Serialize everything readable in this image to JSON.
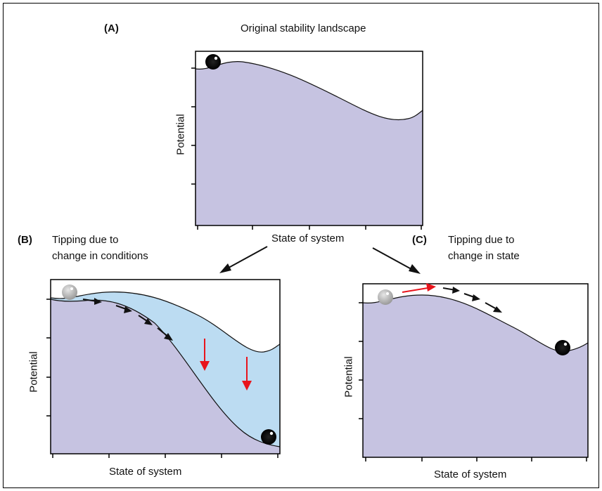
{
  "panel_a": {
    "tag": "(A)",
    "title": "Original stability landscape",
    "ylabel": "Potential",
    "xlabel": "State of system"
  },
  "panel_b": {
    "tag": "(B)",
    "title_line1": "Tipping due to",
    "title_line2": "change in conditions",
    "ylabel": "Potential",
    "xlabel": "State of system"
  },
  "panel_c": {
    "tag": "(C)",
    "title_line1": "Tipping due to",
    "title_line2": "change in state",
    "ylabel": "Potential",
    "xlabel": "State of system"
  },
  "colors": {
    "landscape_fill": "#c6c3e1",
    "shifted_fill": "#bcdcf2",
    "red_arrow": "#e8141c",
    "ball_dark": "#111111",
    "ball_ghost": "#b3b3b3"
  }
}
